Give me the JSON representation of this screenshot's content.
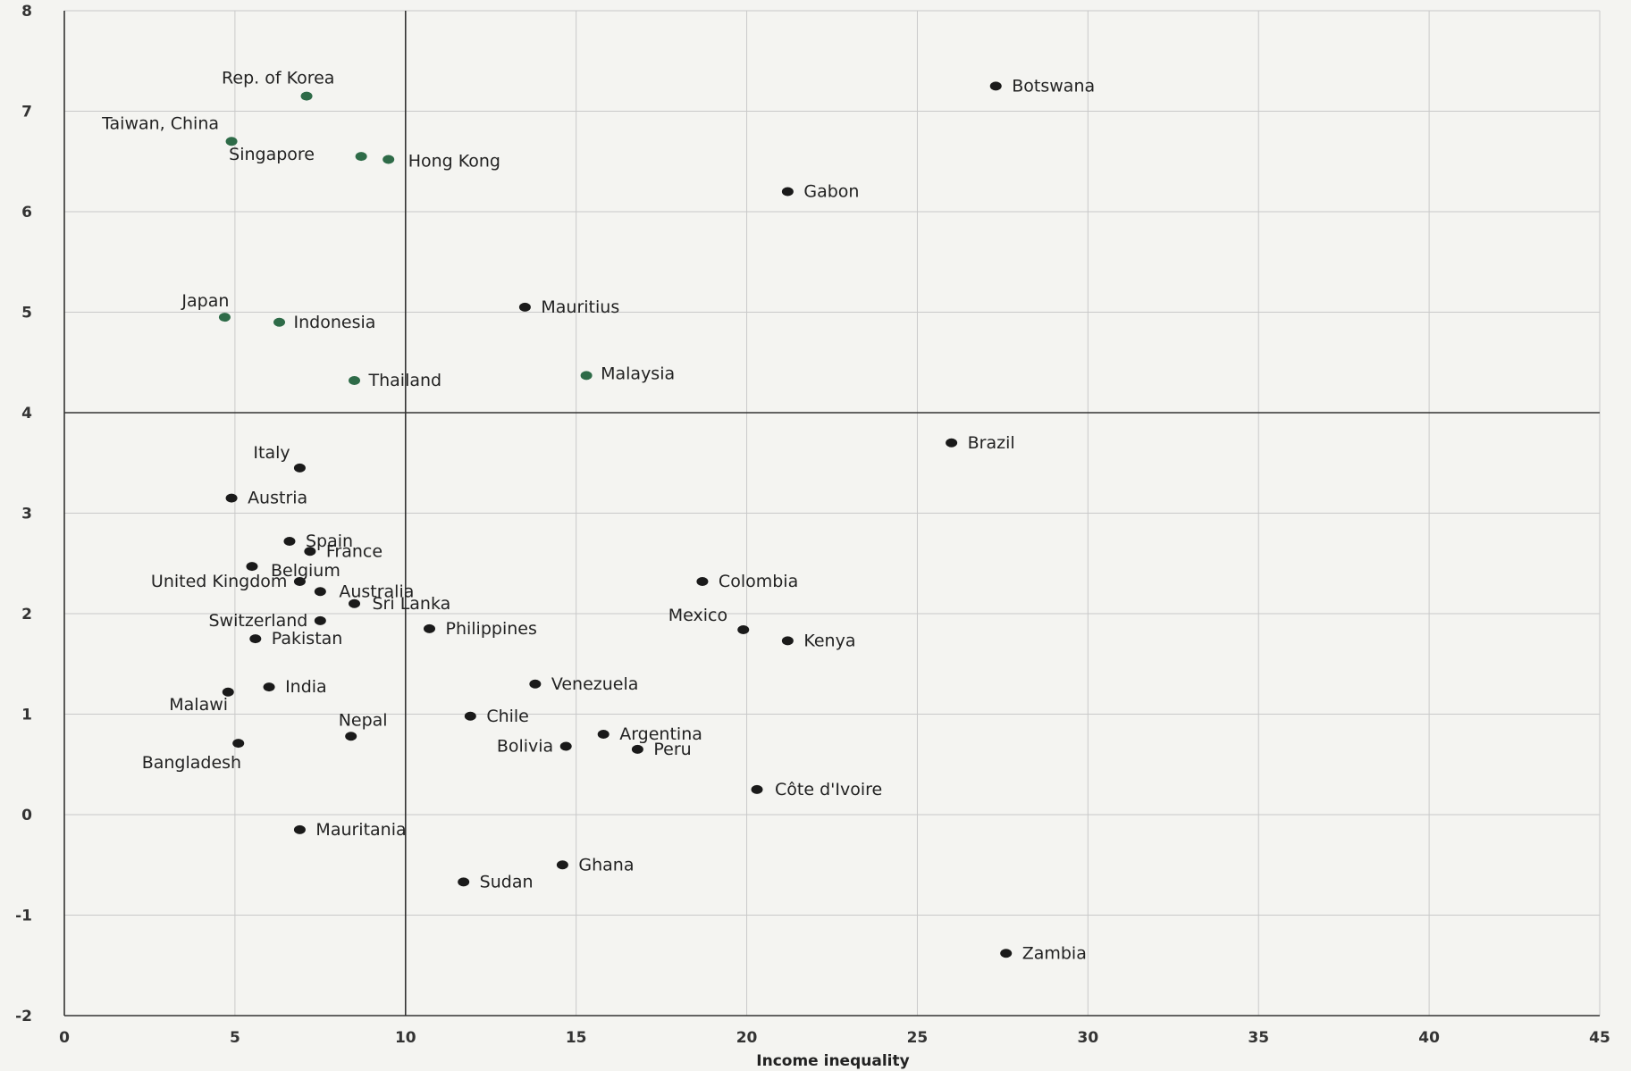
{
  "chart_data": {
    "type": "scatter",
    "title": "",
    "xlabel": "Income inequality",
    "ylabel": "",
    "xlim": [
      0,
      45
    ],
    "ylim": [
      -2,
      8
    ],
    "x_ticks": [
      "0",
      "5",
      "10",
      "15",
      "20",
      "25",
      "30",
      "35",
      "40",
      "45"
    ],
    "y_ticks": [
      "-2",
      "-1",
      "0",
      "1",
      "2",
      "3",
      "4",
      "5",
      "6",
      "7",
      "8"
    ],
    "grid": true,
    "reference_lines": {
      "x": 10,
      "y": 4
    },
    "colors": {
      "highlight": "#2e6b48",
      "default": "#1a1a1a"
    },
    "points": [
      {
        "label": "Rep. of Korea",
        "x": 7.1,
        "y": 7.15,
        "group": "highlight"
      },
      {
        "label": "Taiwan, China",
        "x": 4.9,
        "y": 6.7,
        "group": "highlight"
      },
      {
        "label": "Singapore",
        "x": 8.7,
        "y": 6.55,
        "group": "highlight"
      },
      {
        "label": "Hong Kong",
        "x": 9.5,
        "y": 6.52,
        "group": "highlight"
      },
      {
        "label": "Japan",
        "x": 4.7,
        "y": 4.95,
        "group": "highlight"
      },
      {
        "label": "Indonesia",
        "x": 6.3,
        "y": 4.9,
        "group": "highlight"
      },
      {
        "label": "Thailand",
        "x": 8.5,
        "y": 4.32,
        "group": "highlight"
      },
      {
        "label": "Malaysia",
        "x": 15.3,
        "y": 4.37,
        "group": "highlight"
      },
      {
        "label": "Botswana",
        "x": 27.3,
        "y": 7.25,
        "group": "default"
      },
      {
        "label": "Gabon",
        "x": 21.2,
        "y": 6.2,
        "group": "default"
      },
      {
        "label": "Mauritius",
        "x": 13.5,
        "y": 5.05,
        "group": "default"
      },
      {
        "label": "Brazil",
        "x": 26.0,
        "y": 3.7,
        "group": "default"
      },
      {
        "label": "Italy",
        "x": 6.9,
        "y": 3.45,
        "group": "default"
      },
      {
        "label": "Austria",
        "x": 4.9,
        "y": 3.15,
        "group": "default"
      },
      {
        "label": "Spain",
        "x": 6.6,
        "y": 2.72,
        "group": "default"
      },
      {
        "label": "France",
        "x": 7.2,
        "y": 2.62,
        "group": "default"
      },
      {
        "label": "Belgium",
        "x": 5.5,
        "y": 2.47,
        "group": "default"
      },
      {
        "label": "United Kingdom",
        "x": 6.9,
        "y": 2.32,
        "group": "default"
      },
      {
        "label": "Australia",
        "x": 7.5,
        "y": 2.22,
        "group": "default"
      },
      {
        "label": "Sri Lanka",
        "x": 8.5,
        "y": 2.1,
        "group": "default"
      },
      {
        "label": "Switzerland",
        "x": 7.5,
        "y": 1.93,
        "group": "default"
      },
      {
        "label": "Pakistan",
        "x": 5.6,
        "y": 1.75,
        "group": "default"
      },
      {
        "label": "Philippines",
        "x": 10.7,
        "y": 1.85,
        "group": "default"
      },
      {
        "label": "Colombia",
        "x": 18.7,
        "y": 2.32,
        "group": "default"
      },
      {
        "label": "Mexico",
        "x": 19.9,
        "y": 1.84,
        "group": "default"
      },
      {
        "label": "Kenya",
        "x": 21.2,
        "y": 1.73,
        "group": "default"
      },
      {
        "label": "India",
        "x": 6.0,
        "y": 1.27,
        "group": "default"
      },
      {
        "label": "Malawi",
        "x": 4.8,
        "y": 1.22,
        "group": "default"
      },
      {
        "label": "Venezuela",
        "x": 13.8,
        "y": 1.3,
        "group": "default"
      },
      {
        "label": "Chile",
        "x": 11.9,
        "y": 0.98,
        "group": "default"
      },
      {
        "label": "Nepal",
        "x": 8.4,
        "y": 0.78,
        "group": "default"
      },
      {
        "label": "Argentina",
        "x": 15.8,
        "y": 0.8,
        "group": "default"
      },
      {
        "label": "Bolivia",
        "x": 14.7,
        "y": 0.68,
        "group": "default"
      },
      {
        "label": "Peru",
        "x": 16.8,
        "y": 0.65,
        "group": "default"
      },
      {
        "label": "Bangladesh",
        "x": 5.1,
        "y": 0.71,
        "group": "default"
      },
      {
        "label": "Côte d'Ivoire",
        "x": 20.3,
        "y": 0.25,
        "group": "default"
      },
      {
        "label": "Mauritania",
        "x": 6.9,
        "y": -0.15,
        "group": "default"
      },
      {
        "label": "Ghana",
        "x": 14.6,
        "y": -0.5,
        "group": "default"
      },
      {
        "label": "Sudan",
        "x": 11.7,
        "y": -0.67,
        "group": "default"
      },
      {
        "label": "Zambia",
        "x": 27.6,
        "y": -1.38,
        "group": "default"
      }
    ]
  }
}
